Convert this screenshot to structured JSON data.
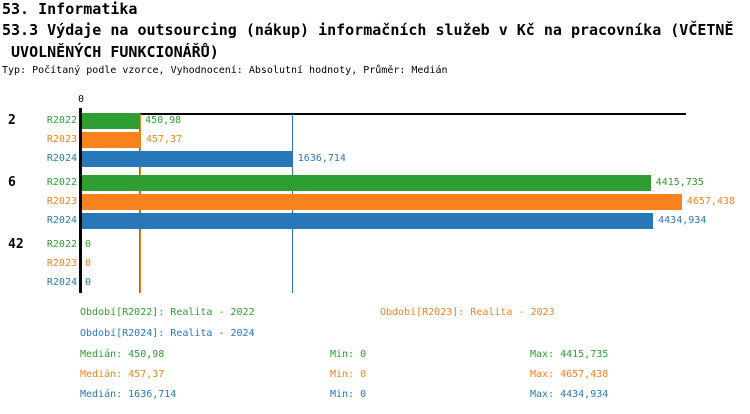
{
  "page": {
    "title": "53. Informatika",
    "subtitle_line1": "53.3 Výdaje na outsourcing (nákup) informačních služeb v Kč na pracovníka (VČETNĚ",
    "subtitle_line2": " UVOLNĚNÝCH FUNKCIONÁŘŮ)",
    "meta": "Typ: Počítaný podle vzorce, Vyhodnocení: Absolutní hodnoty, Průměr: Medián"
  },
  "colors": {
    "r2022": "#2e9e31",
    "r2023": "#f8821d",
    "r2024": "#2878b9",
    "axis": "#000000",
    "background": "#ffffff"
  },
  "chart_data": {
    "type": "bar",
    "orientation": "horizontal",
    "title": "53.3 Výdaje na outsourcing (nákup) informačních služeb v Kč na pracovníka (VČETNĚ UVOLNĚNÝCH FUNKCIONÁŘŮ)",
    "categories": [
      "2",
      "6",
      "42"
    ],
    "series": [
      {
        "name": "R2022",
        "color_key": "r2022",
        "values": [
          450.98,
          4415.735,
          0
        ],
        "value_labels": [
          "450,98",
          "4415,735",
          "0"
        ],
        "median": 450.98
      },
      {
        "name": "R2023",
        "color_key": "r2023",
        "values": [
          457.37,
          4657.438,
          0
        ],
        "value_labels": [
          "457,37",
          "4657,438",
          "0"
        ],
        "median": 457.37
      },
      {
        "name": "R2024",
        "color_key": "r2024",
        "values": [
          1636.714,
          4434.934,
          0
        ],
        "value_labels": [
          "1636,714",
          "4434,934",
          "0"
        ],
        "median": 1636.714
      }
    ],
    "x_axis": {
      "zero_label": "0",
      "xmin": 0,
      "xmax": 4690,
      "gridlines": "median-markers"
    },
    "legend_position": "bottom"
  },
  "legend": {
    "items": [
      {
        "text": "Období[R2022]: Realita - 2022",
        "color_key": "r2022"
      },
      {
        "text": "Období[R2023]: Realita - 2023",
        "color_key": "r2023"
      },
      {
        "text": "Období[R2024]: Realita - 2024",
        "color_key": "r2024"
      }
    ]
  },
  "stats": {
    "rows": [
      {
        "median": "Medián: 450,98",
        "min": "Min: 0",
        "max": "Max: 4415,735",
        "color_key": "r2022"
      },
      {
        "median": "Medián: 457,37",
        "min": "Min: 0",
        "max": "Max: 4657,438",
        "color_key": "r2023"
      },
      {
        "median": "Medián: 1636,714",
        "min": "Min: 0",
        "max": "Max: 4434,934",
        "color_key": "r2024"
      }
    ]
  }
}
